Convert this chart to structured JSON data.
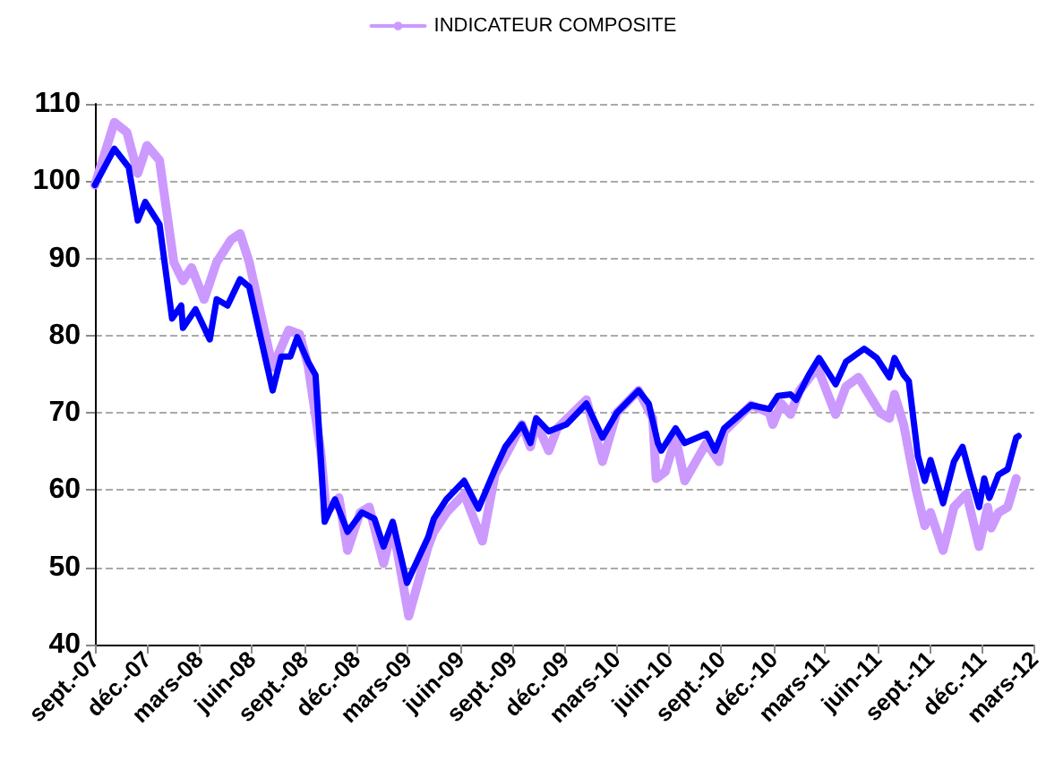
{
  "chart_data": {
    "type": "line",
    "legend": "top",
    "grid": "y",
    "marker": "none",
    "line_style": "solid",
    "ylim": [
      40,
      110
    ],
    "yticks": [
      40,
      50,
      60,
      70,
      80,
      90,
      100,
      110
    ],
    "xlim": [
      "2007-09-01",
      "2012-03-01"
    ],
    "xticks": [
      {
        "value": "2007-09-01",
        "label": "sept.-07"
      },
      {
        "value": "2007-12-01",
        "label": "déc.-07"
      },
      {
        "value": "2008-03-01",
        "label": "mars-08"
      },
      {
        "value": "2008-06-01",
        "label": "juin-08"
      },
      {
        "value": "2008-09-01",
        "label": "sept.-08"
      },
      {
        "value": "2008-12-01",
        "label": "déc.-08"
      },
      {
        "value": "2009-03-01",
        "label": "mars-09"
      },
      {
        "value": "2009-06-01",
        "label": "juin-09"
      },
      {
        "value": "2009-09-01",
        "label": "sept.-09"
      },
      {
        "value": "2009-12-01",
        "label": "déc.-09"
      },
      {
        "value": "2010-03-01",
        "label": "mars-10"
      },
      {
        "value": "2010-06-01",
        "label": "juin-10"
      },
      {
        "value": "2010-09-01",
        "label": "sept.-10"
      },
      {
        "value": "2010-12-01",
        "label": "déc.-10"
      },
      {
        "value": "2011-03-01",
        "label": "mars-11"
      },
      {
        "value": "2011-06-01",
        "label": "juin-11"
      },
      {
        "value": "2011-09-01",
        "label": "sept.-11"
      },
      {
        "value": "2011-12-01",
        "label": "déc.-11"
      },
      {
        "value": "2012-03-01",
        "label": "mars-12"
      }
    ],
    "series": [
      {
        "color": "#0000ff",
        "x": [
          "2007-09-01",
          "2007-10-05",
          "2007-10-30",
          "2007-11-15",
          "2007-11-28",
          "2007-12-23",
          "2008-01-14",
          "2008-01-30",
          "2008-02-02",
          "2008-02-24",
          "2008-03-20",
          "2008-04-01",
          "2008-04-20",
          "2008-05-12",
          "2008-05-28",
          "2008-07-08",
          "2008-07-23",
          "2008-08-08",
          "2008-08-20",
          "2008-09-08",
          "2008-09-21",
          "2008-09-30",
          "2008-10-07",
          "2008-10-25",
          "2008-11-16",
          "2008-12-11",
          "2009-01-02",
          "2009-01-18",
          "2009-02-03",
          "2009-02-28",
          "2009-04-06",
          "2009-04-16",
          "2009-05-08",
          "2009-06-08",
          "2009-07-03",
          "2009-08-01",
          "2009-08-19",
          "2009-09-17",
          "2009-10-02",
          "2009-10-12",
          "2009-11-03",
          "2009-12-04",
          "2010-01-08",
          "2010-02-05",
          "2010-03-02",
          "2010-04-09",
          "2010-04-27",
          "2010-05-13",
          "2010-05-19",
          "2010-06-13",
          "2010-06-29",
          "2010-08-06",
          "2010-08-21",
          "2010-09-06",
          "2010-10-23",
          "2010-11-24",
          "2010-12-09",
          "2010-12-31",
          "2011-01-10",
          "2011-02-01",
          "2011-02-19",
          "2011-03-20",
          "2011-04-07",
          "2011-05-09",
          "2011-05-31",
          "2011-06-22",
          "2011-07-01",
          "2011-07-17",
          "2011-07-26",
          "2011-08-11",
          "2011-08-23",
          "2011-09-02",
          "2011-09-24",
          "2011-10-13",
          "2011-10-28",
          "2011-11-10",
          "2011-11-26",
          "2011-12-05",
          "2011-12-14",
          "2011-12-30",
          "2012-01-15",
          "2012-01-30",
          "2012-02-03"
        ],
        "values": [
          99.5,
          104.2,
          101.8,
          94.9,
          97.3,
          94.4,
          82.2,
          83.9,
          81,
          83.4,
          79.5,
          84.7,
          83.9,
          87.3,
          86.3,
          72.9,
          77.3,
          77.3,
          79.8,
          76.6,
          74.9,
          64.4,
          55.9,
          58.8,
          54.6,
          57.1,
          56.3,
          52.7,
          55.9,
          48,
          53.9,
          56.3,
          58.8,
          61.2,
          57.6,
          62.7,
          65.6,
          68.5,
          66.1,
          69.3,
          67.6,
          68.5,
          71.2,
          66.8,
          70,
          72.9,
          71.2,
          66.1,
          65.1,
          68,
          66.1,
          67.3,
          65.1,
          68,
          71,
          70.5,
          72.2,
          72.4,
          71.7,
          74.9,
          77.1,
          73.7,
          76.6,
          78.3,
          77.1,
          74.6,
          77.1,
          74.9,
          74.1,
          64.4,
          61.2,
          63.9,
          58.3,
          63.7,
          65.6,
          62,
          57.8,
          61.5,
          59,
          62,
          62.7,
          66.8,
          67
        ]
      },
      {
        "name": "INDICATEUR COMPOSITE",
        "color": "#cc99ff",
        "x": [
          "2007-09-01",
          "2007-10-05",
          "2007-10-27",
          "2007-11-15",
          "2007-12-01",
          "2007-12-23",
          "2008-01-17",
          "2008-02-02",
          "2008-02-17",
          "2008-03-10",
          "2008-04-01",
          "2008-04-26",
          "2008-05-12",
          "2008-05-28",
          "2008-07-08",
          "2008-08-05",
          "2008-08-24",
          "2008-09-08",
          "2008-09-30",
          "2008-10-10",
          "2008-11-01",
          "2008-11-16",
          "2008-12-08",
          "2008-12-24",
          "2009-01-18",
          "2009-02-03",
          "2009-03-03",
          "2009-04-06",
          "2009-04-16",
          "2009-05-08",
          "2009-06-08",
          "2009-07-10",
          "2009-08-01",
          "2009-08-19",
          "2009-09-17",
          "2009-10-02",
          "2009-10-12",
          "2009-11-03",
          "2009-11-18",
          "2010-01-08",
          "2010-02-05",
          "2010-03-02",
          "2010-04-09",
          "2010-05-04",
          "2010-05-10",
          "2010-05-26",
          "2010-06-13",
          "2010-06-29",
          "2010-08-06",
          "2010-08-28",
          "2010-09-06",
          "2010-10-23",
          "2010-11-24",
          "2010-11-30",
          "2010-12-15",
          "2010-12-31",
          "2011-01-16",
          "2011-02-16",
          "2011-03-20",
          "2011-04-07",
          "2011-04-29",
          "2011-06-06",
          "2011-06-22",
          "2011-07-01",
          "2011-07-17",
          "2011-08-08",
          "2011-08-23",
          "2011-09-02",
          "2011-09-24",
          "2011-10-13",
          "2011-11-04",
          "2011-11-26",
          "2011-12-11",
          "2011-12-17",
          "2011-12-30",
          "2012-01-15",
          "2012-01-30"
        ],
        "values": [
          99.5,
          107.6,
          106.3,
          101,
          104.6,
          102.7,
          89.5,
          87.1,
          88.8,
          84.7,
          89.5,
          92.4,
          93.2,
          89.5,
          75.9,
          80.7,
          80.2,
          76.1,
          65.1,
          57.1,
          59,
          52.2,
          57.1,
          57.8,
          50.5,
          55.4,
          43.7,
          52.7,
          54.6,
          57.1,
          59.5,
          53.4,
          62,
          64.4,
          68.5,
          65.6,
          68.8,
          65.1,
          68,
          71.7,
          63.7,
          70,
          72.9,
          69.3,
          61.5,
          62.4,
          66.8,
          61.2,
          66.1,
          63.7,
          67.6,
          71,
          70,
          68.5,
          71.2,
          69.8,
          72.9,
          75.9,
          69.8,
          73.4,
          74.6,
          70,
          69.3,
          72.4,
          68.5,
          60,
          55.4,
          57.1,
          52.2,
          57.8,
          59.5,
          52.7,
          57.8,
          55.1,
          57.1,
          57.8,
          61.5
        ]
      }
    ]
  }
}
